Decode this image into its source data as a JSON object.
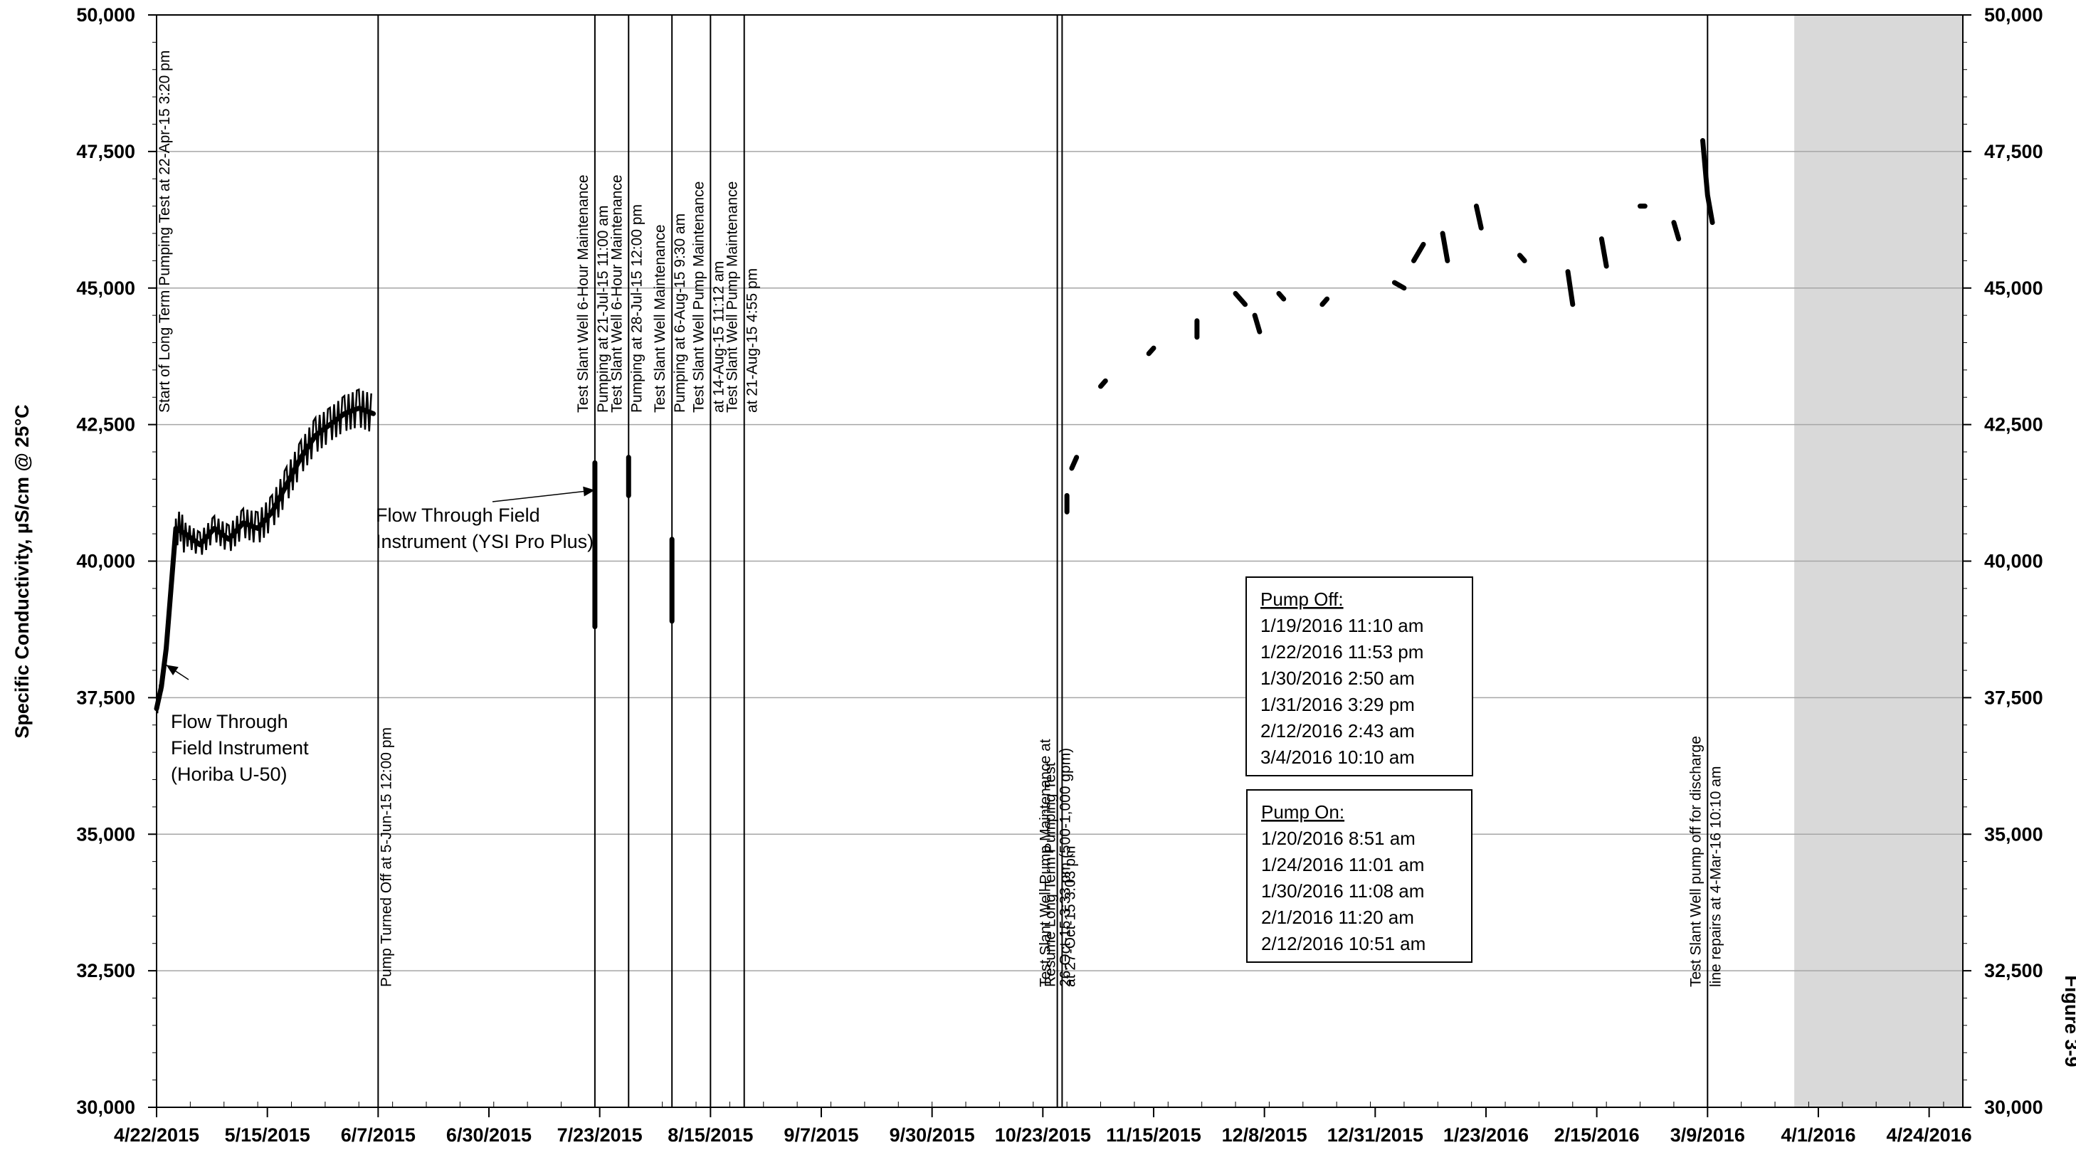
{
  "chart_data": {
    "type": "line",
    "ylabel": "Specific Conductivity, µS/cm @ 25°C",
    "figure_label": "Figure 3-9",
    "ylim": [
      30000,
      50000
    ],
    "yticks": [
      30000,
      32500,
      35000,
      37500,
      40000,
      42500,
      45000,
      47500,
      50000
    ],
    "ytick_labels": [
      "30,000",
      "32,500",
      "35,000",
      "37,500",
      "40,000",
      "42,500",
      "45,000",
      "47,500",
      "50,000"
    ],
    "xlim": [
      "2015-04-22",
      "2016-05-01"
    ],
    "xticks": [
      "2015-04-22",
      "2015-05-15",
      "2015-06-07",
      "2015-06-30",
      "2015-07-23",
      "2015-08-15",
      "2015-09-07",
      "2015-09-30",
      "2015-10-23",
      "2015-11-15",
      "2015-12-08",
      "2015-12-31",
      "2016-01-23",
      "2016-02-15",
      "2016-03-09",
      "2016-04-01",
      "2016-04-24"
    ],
    "xtick_labels": [
      "4/22/2015",
      "5/15/2015",
      "6/7/2015",
      "6/30/2015",
      "7/23/2015",
      "8/15/2015",
      "9/7/2015",
      "9/30/2015",
      "10/23/2015",
      "11/15/2015",
      "12/8/2015",
      "12/31/2015",
      "1/23/2016",
      "2/15/2016",
      "3/9/2016",
      "4/1/2016",
      "4/24/2016"
    ],
    "grid": true,
    "shaded_region": [
      "2016-03-27",
      "2016-05-01"
    ],
    "series": [
      {
        "color": "#000000",
        "segments": [
          {
            "x": [
              "2015-04-22",
              "2015-04-23",
              "2015-04-24",
              "2015-04-25",
              "2015-04-26",
              "2015-04-28",
              "2015-05-01",
              "2015-05-04",
              "2015-05-07",
              "2015-05-10",
              "2015-05-13",
              "2015-05-16",
              "2015-05-19",
              "2015-05-22",
              "2015-05-25",
              "2015-05-28",
              "2015-05-31",
              "2015-06-03",
              "2015-06-06"
            ],
            "y": [
              37300,
              37700,
              38400,
              39500,
              40600,
              40500,
              40300,
              40600,
              40400,
              40700,
              40600,
              40900,
              41400,
              41900,
              42300,
              42500,
              42700,
              42800,
              42700
            ],
            "spread": [
              300,
              400,
              500,
              600,
              700,
              800,
              900,
              900,
              1000,
              1000,
              1100,
              1100,
              1100,
              1000,
              1000,
              900,
              900,
              900,
              900
            ]
          },
          {
            "x": [
              "2015-07-22",
              "2015-07-22"
            ],
            "y": [
              41800,
              38800
            ]
          },
          {
            "x": [
              "2015-07-29",
              "2015-07-29"
            ],
            "y": [
              41900,
              41200
            ]
          },
          {
            "x": [
              "2015-08-07",
              "2015-08-07"
            ],
            "y": [
              40400,
              38900
            ]
          },
          {
            "x": [
              "2015-10-28",
              "2015-10-28"
            ],
            "y": [
              41200,
              40900
            ]
          },
          {
            "x": [
              "2015-10-29",
              "2015-10-30"
            ],
            "y": [
              41700,
              41900
            ]
          },
          {
            "x": [
              "2015-11-04",
              "2015-11-05"
            ],
            "y": [
              43200,
              43300
            ]
          },
          {
            "x": [
              "2015-11-14",
              "2015-11-15"
            ],
            "y": [
              43800,
              43900
            ]
          },
          {
            "x": [
              "2015-11-24",
              "2015-11-24"
            ],
            "y": [
              44400,
              44100
            ]
          },
          {
            "x": [
              "2015-12-02",
              "2015-12-04"
            ],
            "y": [
              44900,
              44700
            ]
          },
          {
            "x": [
              "2015-12-06",
              "2015-12-07"
            ],
            "y": [
              44500,
              44200
            ]
          },
          {
            "x": [
              "2015-12-11",
              "2015-12-12"
            ],
            "y": [
              44900,
              44800
            ]
          },
          {
            "x": [
              "2015-12-20",
              "2015-12-21"
            ],
            "y": [
              44700,
              44800
            ]
          },
          {
            "x": [
              "2016-01-04",
              "2016-01-06"
            ],
            "y": [
              45100,
              45000
            ]
          },
          {
            "x": [
              "2016-01-08",
              "2016-01-10"
            ],
            "y": [
              45500,
              45800
            ]
          },
          {
            "x": [
              "2016-01-14",
              "2016-01-15"
            ],
            "y": [
              46000,
              45500
            ]
          },
          {
            "x": [
              "2016-01-21",
              "2016-01-22"
            ],
            "y": [
              46500,
              46100
            ]
          },
          {
            "x": [
              "2016-01-30",
              "2016-01-31"
            ],
            "y": [
              45600,
              45500
            ]
          },
          {
            "x": [
              "2016-02-09",
              "2016-02-10"
            ],
            "y": [
              45300,
              44700
            ]
          },
          {
            "x": [
              "2016-02-16",
              "2016-02-17"
            ],
            "y": [
              45900,
              45400
            ]
          },
          {
            "x": [
              "2016-02-24",
              "2016-02-25"
            ],
            "y": [
              46500,
              46500
            ]
          },
          {
            "x": [
              "2016-03-02",
              "2016-03-03"
            ],
            "y": [
              46200,
              45900
            ]
          },
          {
            "x": [
              "2016-03-08",
              "2016-03-09",
              "2016-03-10"
            ],
            "y": [
              47700,
              46700,
              46200
            ]
          }
        ]
      }
    ],
    "event_lines": [
      {
        "x": "2015-04-22",
        "label": [
          "Start of Long Term Pumping Test at 22-Apr-15 3:20 pm"
        ]
      },
      {
        "x": "2015-06-07",
        "label": [
          "Pump Turned Off at 5-Jun-15 12:00 pm"
        ]
      },
      {
        "x": "2015-07-22",
        "label": [
          "Test Slant Well 6-Hour Maintenance",
          "Pumping at 21-Jul-15 11:00 am"
        ]
      },
      {
        "x": "2015-07-29",
        "label": [
          "Test Slant Well 6-Hour Maintenance",
          "Pumping at 28-Jul-15 12:00 pm"
        ]
      },
      {
        "x": "2015-08-07",
        "label": [
          "Test Slant Well Maintenance",
          "Pumping at 6-Aug-15 9:30 am"
        ]
      },
      {
        "x": "2015-08-15",
        "label": [
          "Test Slant Well Pump Maintenance",
          "at 14-Aug-15 11:12 am"
        ]
      },
      {
        "x": "2015-08-22",
        "label": [
          "Test Slant Well Pump Maintenance",
          "at 21-Aug-15 4:55 pm"
        ]
      },
      {
        "x": "2015-10-26",
        "label": [
          "Test Slant Well Pump Maintenance at",
          "26-Oct-15 3:33 pm (500-1,000 gpm)"
        ]
      },
      {
        "x": "2015-10-27",
        "label": [
          "Resume Long Term Pumping Test",
          "at 27-Oct-15 3:03 pm"
        ]
      },
      {
        "x": "2016-03-09",
        "label": [
          "Test Slant Well pump off for discharge",
          "line repairs at 4-Mar-16 10:10 am"
        ]
      }
    ],
    "annotations": [
      {
        "lines": [
          "Flow Through Field",
          "Instrument (YSI Pro Plus)"
        ],
        "arrow_to": {
          "x": "2015-07-22",
          "y": 41300
        }
      },
      {
        "lines": [
          "Flow Through",
          "Field Instrument",
          "(Horiba U-50)"
        ],
        "arrow_to": {
          "x": "2015-04-24",
          "y": 38100
        }
      }
    ],
    "pump_off": {
      "title": "Pump Off:",
      "entries": [
        "1/19/2016  11:10 am",
        "1/22/2016  11:53 pm",
        "1/30/2016  2:50 am",
        "1/31/2016  3:29 pm",
        "2/12/2016  2:43 am",
        "3/4/2016    10:10 am"
      ]
    },
    "pump_on": {
      "title": "Pump On:",
      "entries": [
        "1/20/2016  8:51 am",
        "1/24/2016  11:01 am",
        "1/30/2016  11:08 am",
        "2/1/2016  11:20 am",
        "2/12/2016  10:51 am"
      ]
    }
  }
}
